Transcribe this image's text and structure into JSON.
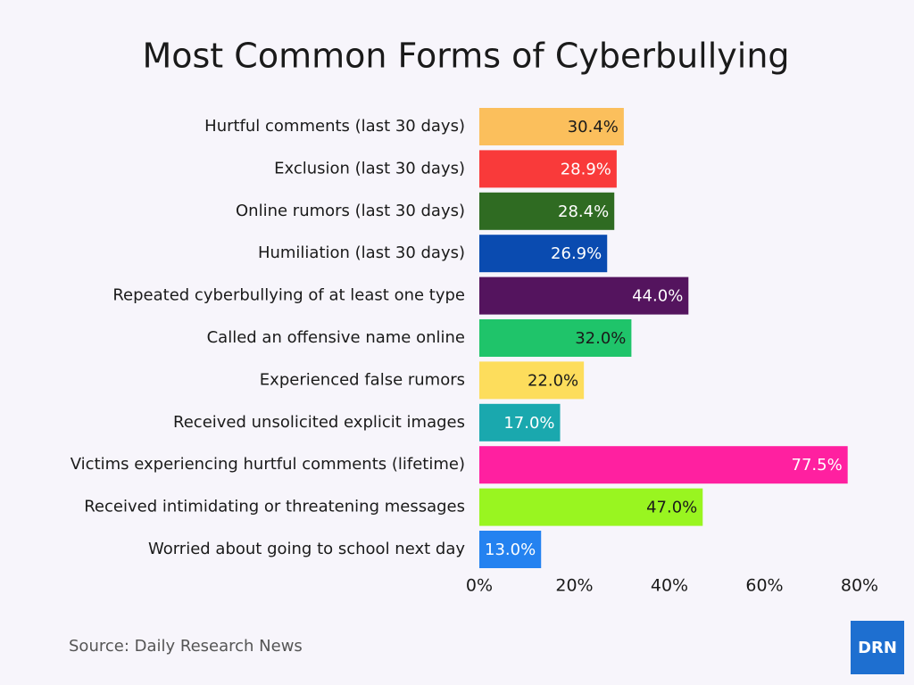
{
  "chart_data": {
    "type": "hbar",
    "title": "Most Common Forms of Cyberbullying",
    "categories": [
      "Hurtful comments (last 30 days)",
      "Exclusion (last 30 days)",
      "Online rumors (last 30 days)",
      "Humiliation (last 30 days)",
      "Repeated cyberbullying of at least one type",
      "Called an offensive name online",
      "Experienced false rumors",
      "Received unsolicited explicit images",
      "Victims experiencing hurtful comments (lifetime)",
      "Received intimidating or threatening messages",
      "Worried about going to school next day"
    ],
    "values": [
      30.4,
      28.9,
      28.4,
      26.9,
      44,
      32,
      22,
      17,
      77.5,
      47,
      13
    ],
    "value_labels": [
      "30.4%",
      "28.9%",
      "28.4%",
      "26.9%",
      "44.0%",
      "32.0%",
      "22.0%",
      "17.0%",
      "77.5%",
      "47.0%",
      "13.0%"
    ],
    "colors": [
      "#fbbf5c",
      "#f93a3a",
      "#2f6b22",
      "#0a4bb0",
      "#54145e",
      "#1fc46a",
      "#fddd5c",
      "#1aa8ae",
      "#ff20a0",
      "#99f520",
      "#2482f0"
    ],
    "xlim": [
      0,
      80
    ],
    "xticks": [
      {
        "value": 0,
        "label": "0%"
      },
      {
        "value": 20,
        "label": "20%"
      },
      {
        "value": 40,
        "label": "40%"
      },
      {
        "value": 60,
        "label": "60%"
      },
      {
        "value": 80,
        "label": "80%"
      }
    ],
    "grid": false,
    "source": "Source: Daily Research News",
    "logo": "DRN"
  }
}
